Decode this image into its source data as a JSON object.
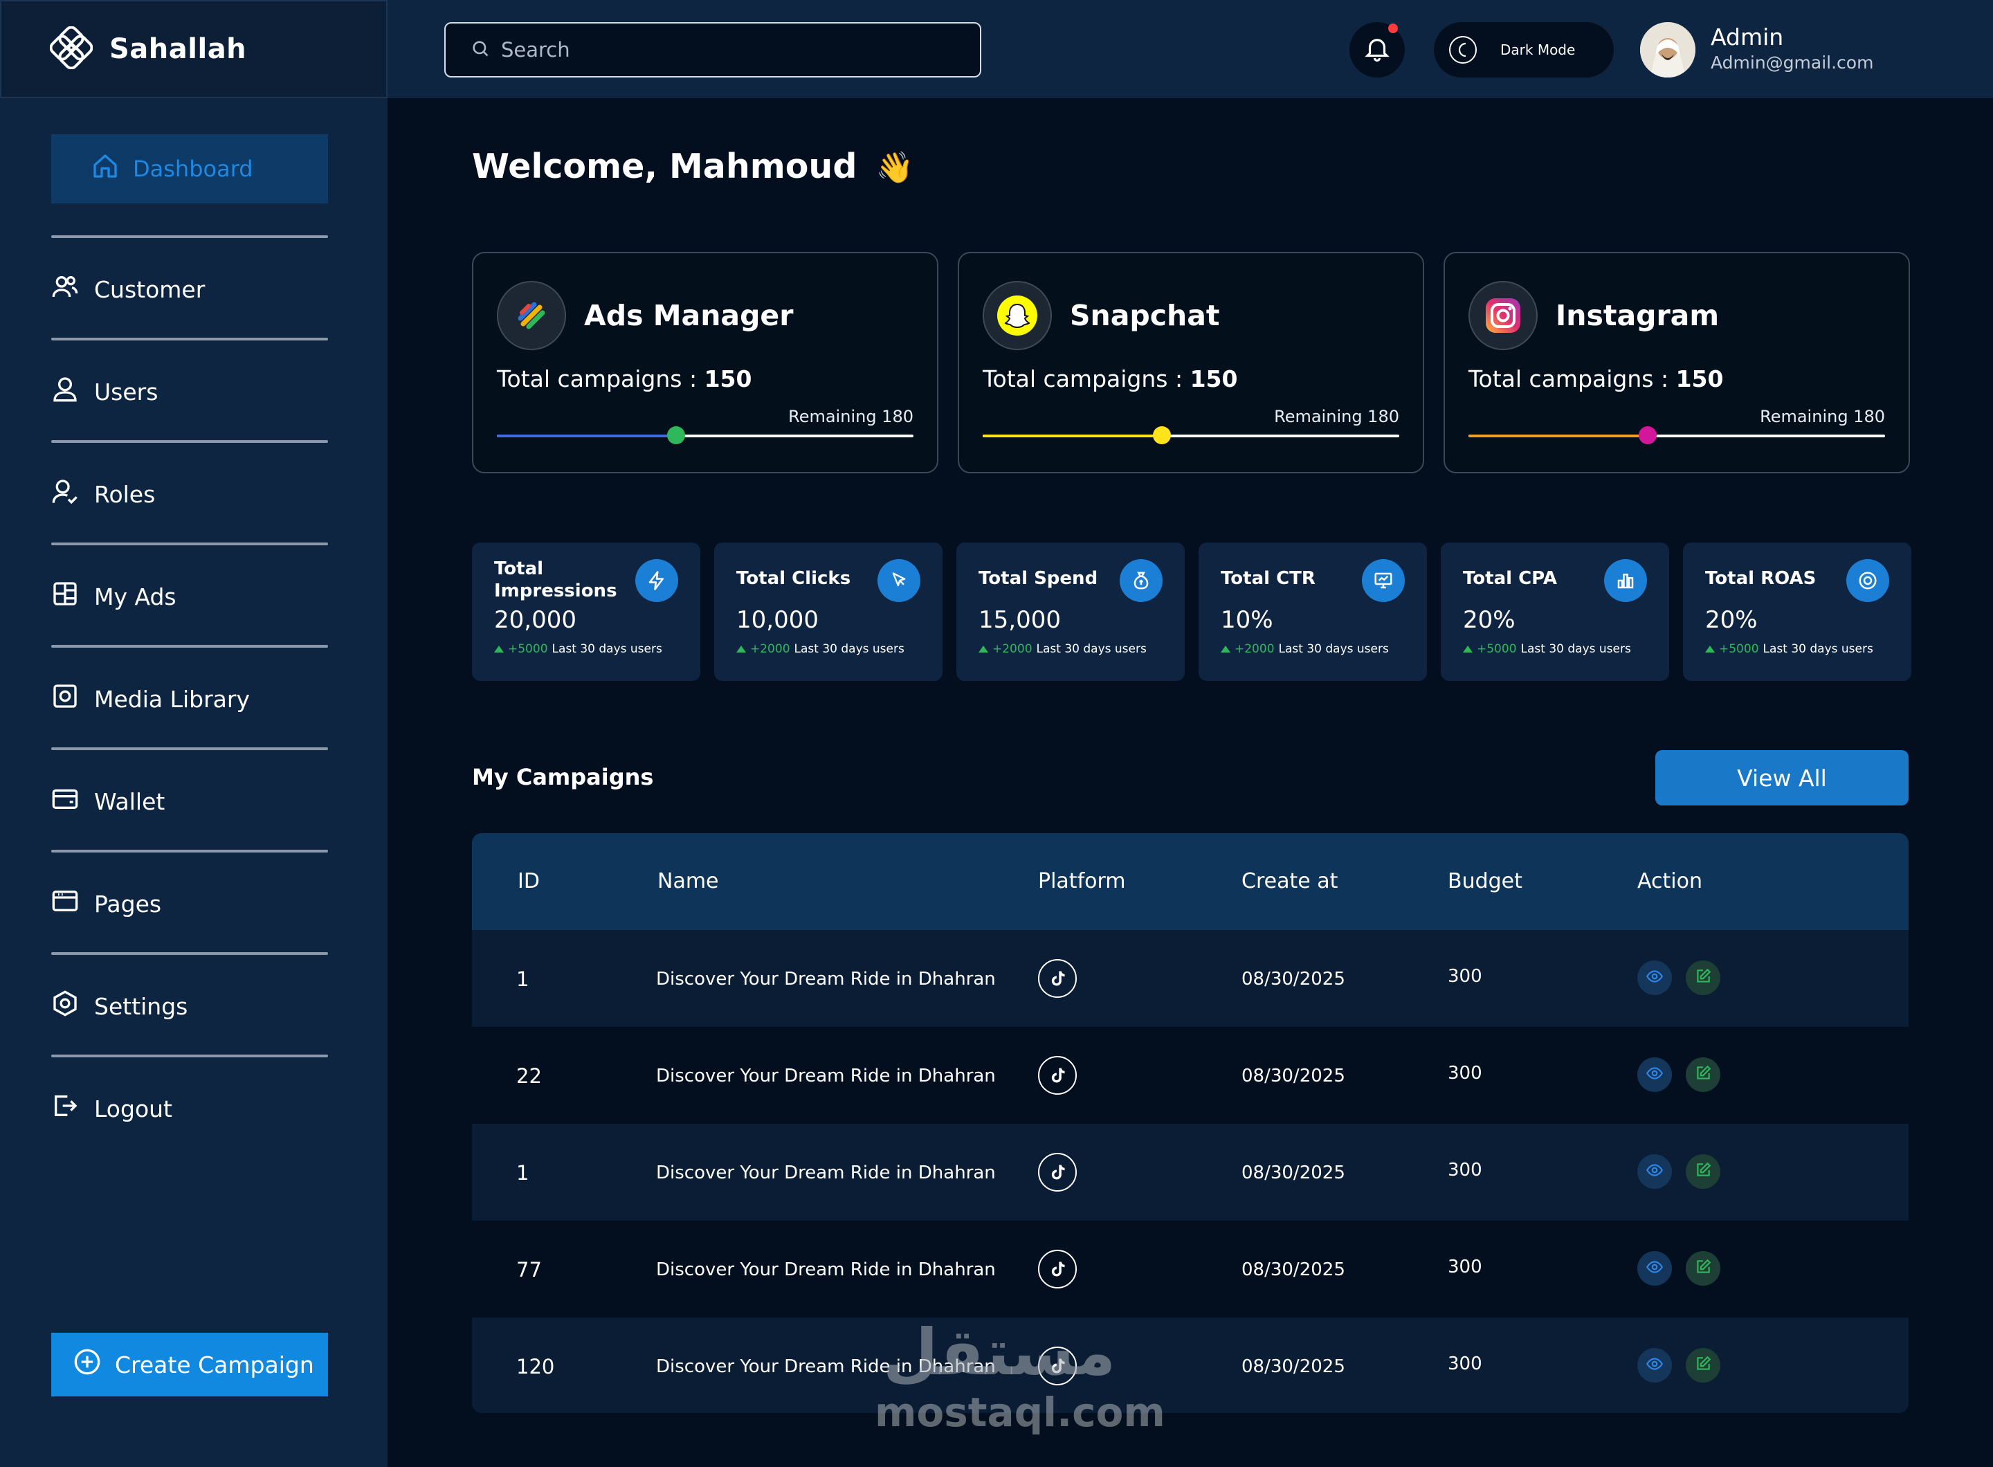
{
  "brand": {
    "name": "Sahallah"
  },
  "search": {
    "placeholder": "Search"
  },
  "header": {
    "dark_mode_label": "Dark Mode",
    "user_name": "Admin",
    "user_email": "Admin@gmail.com"
  },
  "sidebar": {
    "active": "Dashboard",
    "items": [
      {
        "label": "Customer",
        "icon": "users-icon"
      },
      {
        "label": "Users",
        "icon": "user-icon"
      },
      {
        "label": "Roles",
        "icon": "user-check-icon"
      },
      {
        "label": "My Ads",
        "icon": "grid-icon"
      },
      {
        "label": "Media Library",
        "icon": "image-icon"
      },
      {
        "label": "Wallet",
        "icon": "wallet-icon"
      },
      {
        "label": "Pages",
        "icon": "browser-icon"
      },
      {
        "label": "Settings",
        "icon": "hexagon-gear-icon"
      },
      {
        "label": "Logout",
        "icon": "logout-icon"
      }
    ],
    "create_label": "Create Campaign"
  },
  "welcome": {
    "text": "Welcome, Mahmoud",
    "emoji": "👋"
  },
  "platforms": [
    {
      "name": "Ads Manager",
      "campaigns_label": "Total campaigns : ",
      "campaigns": "150",
      "remaining": "Remaining 180",
      "progress": 0.43,
      "color": "#2fb85a",
      "fill": "#3b6fe0"
    },
    {
      "name": "Snapchat",
      "campaigns_label": "Total campaigns : ",
      "campaigns": "150",
      "remaining": "Remaining 180",
      "progress": 0.43,
      "color": "#ffe41a",
      "fill": "#ffe41a"
    },
    {
      "name": "Instagram",
      "campaigns_label": "Total campaigns : ",
      "campaigns": "150",
      "remaining": "Remaining 180",
      "progress": 0.43,
      "color": "#d4169a",
      "fill": "#f0a020"
    }
  ],
  "stats": [
    {
      "title": "Total Impressions",
      "value": "20,000",
      "delta": "+5000",
      "note": "Last 30 days users",
      "icon": "bolt-icon"
    },
    {
      "title": "Total Clicks",
      "value": "10,000",
      "delta": "+2000",
      "note": "Last 30 days users",
      "icon": "cursor-icon"
    },
    {
      "title": "Total Spend",
      "value": "15,000",
      "delta": "+2000",
      "note": "Last 30 days users",
      "icon": "money-bag-icon"
    },
    {
      "title": "Total CTR",
      "value": "10%",
      "delta": "+2000",
      "note": "Last 30 days users",
      "icon": "presentation-chart-icon"
    },
    {
      "title": "Total CPA",
      "value": "20%",
      "delta": "+5000",
      "note": "Last 30 days users",
      "icon": "bar-chart-icon"
    },
    {
      "title": "Total ROAS",
      "value": "20%",
      "delta": "+5000",
      "note": "Last 30 days users",
      "icon": "target-icon"
    }
  ],
  "campaigns": {
    "title": "My Campaigns",
    "view_all": "View All",
    "columns": [
      "ID",
      "Name",
      "Platform",
      "Create at",
      "Budget",
      "Action"
    ],
    "rows": [
      {
        "id": "1",
        "name": "Discover Your Dream Ride in Dhahran",
        "platform": "tiktok-icon",
        "created": "08/30/2025",
        "budget": "300"
      },
      {
        "id": "22",
        "name": "Discover Your Dream Ride in Dhahran",
        "platform": "tiktok-icon",
        "created": "08/30/2025",
        "budget": "300"
      },
      {
        "id": "1",
        "name": "Discover Your Dream Ride in Dhahran",
        "platform": "tiktok-icon",
        "created": "08/30/2025",
        "budget": "300"
      },
      {
        "id": "77",
        "name": "Discover Your Dream Ride in Dhahran",
        "platform": "tiktok-icon",
        "created": "08/30/2025",
        "budget": "300"
      },
      {
        "id": "120",
        "name": "Discover Your Dream Ride in Dhahran",
        "platform": "tiktok-icon",
        "created": "08/30/2025",
        "budget": "300"
      }
    ]
  },
  "watermark": {
    "arabic": "مستقل",
    "latin": "mostaql.com"
  },
  "colors": {
    "accent": "#1289e0",
    "sidebar": "#0e2542",
    "background": "#030f1e",
    "positive": "#2fb85a"
  }
}
